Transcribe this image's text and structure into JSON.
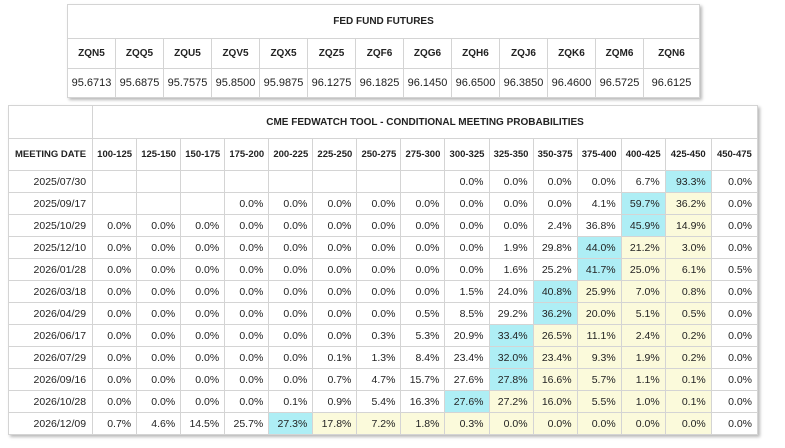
{
  "futures": {
    "title": "FED FUND FUTURES",
    "contracts": [
      "ZQN5",
      "ZQQ5",
      "ZQU5",
      "ZQV5",
      "ZQX5",
      "ZQZ5",
      "ZQF6",
      "ZQG6",
      "ZQH6",
      "ZQJ6",
      "ZQK6",
      "ZQM6",
      "ZQN6"
    ],
    "prices": [
      "95.6713",
      "95.6875",
      "95.7575",
      "95.8500",
      "95.9875",
      "96.1275",
      "96.1825",
      "96.1450",
      "96.6500",
      "96.3850",
      "96.4600",
      "96.5725",
      "96.6125"
    ]
  },
  "fedwatch": {
    "title": "CME FEDWATCH TOOL - CONDITIONAL MEETING PROBABILITIES",
    "date_header": "MEETING DATE",
    "ranges": [
      "100-125",
      "125-150",
      "150-175",
      "175-200",
      "200-225",
      "225-250",
      "250-275",
      "275-300",
      "300-325",
      "325-350",
      "350-375",
      "375-400",
      "400-425",
      "425-450",
      "450-475"
    ],
    "colors": {
      "highest": "#aeeef5",
      "nearby": "#fbfadb",
      "border": "#d4d4d4"
    },
    "rows": [
      {
        "date": "2025/07/30",
        "values": [
          "",
          "",
          "",
          "",
          "",
          "",
          "",
          "",
          "0.0%",
          "0.0%",
          "0.0%",
          "0.0%",
          "6.7%",
          "93.3%",
          "0.0%"
        ],
        "hi": [
          13
        ],
        "mid": []
      },
      {
        "date": "2025/09/17",
        "values": [
          "",
          "",
          "",
          "0.0%",
          "0.0%",
          "0.0%",
          "0.0%",
          "0.0%",
          "0.0%",
          "0.0%",
          "0.0%",
          "4.1%",
          "59.7%",
          "36.2%",
          "0.0%"
        ],
        "hi": [
          12
        ],
        "mid": [
          13
        ]
      },
      {
        "date": "2025/10/29",
        "values": [
          "0.0%",
          "0.0%",
          "0.0%",
          "0.0%",
          "0.0%",
          "0.0%",
          "0.0%",
          "0.0%",
          "0.0%",
          "0.0%",
          "2.4%",
          "36.8%",
          "45.9%",
          "14.9%",
          "0.0%"
        ],
        "hi": [
          12
        ],
        "mid": [
          13
        ]
      },
      {
        "date": "2025/12/10",
        "values": [
          "0.0%",
          "0.0%",
          "0.0%",
          "0.0%",
          "0.0%",
          "0.0%",
          "0.0%",
          "0.0%",
          "0.0%",
          "1.9%",
          "29.8%",
          "44.0%",
          "21.2%",
          "3.0%",
          "0.0%"
        ],
        "hi": [
          11
        ],
        "mid": [
          12,
          13
        ]
      },
      {
        "date": "2026/01/28",
        "values": [
          "0.0%",
          "0.0%",
          "0.0%",
          "0.0%",
          "0.0%",
          "0.0%",
          "0.0%",
          "0.0%",
          "0.0%",
          "1.6%",
          "25.2%",
          "41.7%",
          "25.0%",
          "6.1%",
          "0.5%"
        ],
        "hi": [
          11
        ],
        "mid": [
          12,
          13
        ]
      },
      {
        "date": "2026/03/18",
        "values": [
          "0.0%",
          "0.0%",
          "0.0%",
          "0.0%",
          "0.0%",
          "0.0%",
          "0.0%",
          "0.0%",
          "1.5%",
          "24.0%",
          "40.8%",
          "25.9%",
          "7.0%",
          "0.8%",
          "0.0%"
        ],
        "hi": [
          10
        ],
        "mid": [
          11,
          12,
          13
        ]
      },
      {
        "date": "2026/04/29",
        "values": [
          "0.0%",
          "0.0%",
          "0.0%",
          "0.0%",
          "0.0%",
          "0.0%",
          "0.0%",
          "0.5%",
          "8.5%",
          "29.2%",
          "36.2%",
          "20.0%",
          "5.1%",
          "0.5%",
          "0.0%"
        ],
        "hi": [
          10
        ],
        "mid": [
          11,
          12,
          13
        ]
      },
      {
        "date": "2026/06/17",
        "values": [
          "0.0%",
          "0.0%",
          "0.0%",
          "0.0%",
          "0.0%",
          "0.0%",
          "0.3%",
          "5.3%",
          "20.9%",
          "33.4%",
          "26.5%",
          "11.1%",
          "2.4%",
          "0.2%",
          "0.0%"
        ],
        "hi": [
          9
        ],
        "mid": [
          10,
          11,
          12,
          13
        ]
      },
      {
        "date": "2026/07/29",
        "values": [
          "0.0%",
          "0.0%",
          "0.0%",
          "0.0%",
          "0.0%",
          "0.1%",
          "1.3%",
          "8.4%",
          "23.4%",
          "32.0%",
          "23.4%",
          "9.3%",
          "1.9%",
          "0.2%",
          "0.0%"
        ],
        "hi": [
          9
        ],
        "mid": [
          10,
          11,
          12,
          13
        ]
      },
      {
        "date": "2026/09/16",
        "values": [
          "0.0%",
          "0.0%",
          "0.0%",
          "0.0%",
          "0.0%",
          "0.7%",
          "4.7%",
          "15.7%",
          "27.6%",
          "27.8%",
          "16.6%",
          "5.7%",
          "1.1%",
          "0.1%",
          "0.0%"
        ],
        "hi": [
          9
        ],
        "mid": [
          10,
          11,
          12,
          13
        ]
      },
      {
        "date": "2026/10/28",
        "values": [
          "0.0%",
          "0.0%",
          "0.0%",
          "0.0%",
          "0.1%",
          "0.9%",
          "5.4%",
          "16.3%",
          "27.6%",
          "27.2%",
          "16.0%",
          "5.5%",
          "1.0%",
          "0.1%",
          "0.0%"
        ],
        "hi": [
          8
        ],
        "mid": [
          9,
          10,
          11,
          12,
          13
        ]
      },
      {
        "date": "2026/12/09",
        "values": [
          "0.7%",
          "4.6%",
          "14.5%",
          "25.7%",
          "27.3%",
          "17.8%",
          "7.2%",
          "1.8%",
          "0.3%",
          "0.0%",
          "0.0%",
          "0.0%",
          "0.0%",
          "0.0%",
          "0.0%"
        ],
        "hi": [
          4
        ],
        "mid": [
          5,
          6,
          7,
          8,
          9,
          10,
          11,
          12,
          13
        ]
      }
    ]
  }
}
